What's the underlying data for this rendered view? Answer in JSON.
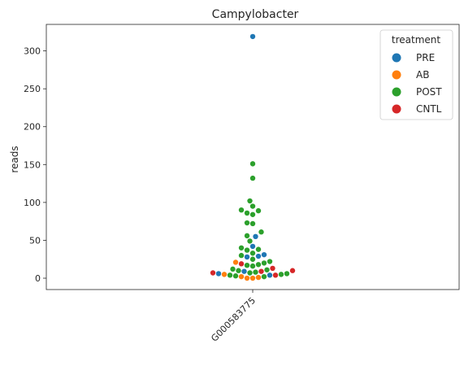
{
  "chart_data": {
    "type": "scatter",
    "subtype": "swarm",
    "title": "Campylobacter",
    "xlabel": "",
    "ylabel": "reads",
    "categories": [
      "G000583775"
    ],
    "ylim": [
      -15,
      335
    ],
    "yticks": [
      0,
      50,
      100,
      150,
      200,
      250,
      300
    ],
    "grid": false,
    "legend": {
      "title": "treatment",
      "placement": "top-right",
      "entries": [
        {
          "name": "PRE",
          "color": "#1f77b4"
        },
        {
          "name": "AB",
          "color": "#ff7f0e"
        },
        {
          "name": "POST",
          "color": "#2ca02c"
        },
        {
          "name": "CNTL",
          "color": "#d62728"
        }
      ]
    },
    "series": [
      {
        "name": "PRE",
        "color": "#1f77b4",
        "values": [
          319,
          55,
          42,
          31,
          28,
          29,
          9,
          6,
          4
        ]
      },
      {
        "name": "AB",
        "color": "#ff7f0e",
        "values": [
          21,
          5,
          2,
          1,
          0,
          0
        ]
      },
      {
        "name": "POST",
        "color": "#2ca02c",
        "values": [
          151,
          132,
          102,
          95,
          90,
          89,
          86,
          84,
          73,
          72,
          61,
          56,
          49,
          40,
          38,
          37,
          33,
          30,
          25,
          22,
          20,
          18,
          17,
          16,
          12,
          11,
          10,
          8,
          7,
          6,
          5,
          4,
          3,
          2
        ]
      },
      {
        "name": "CNTL",
        "color": "#d62728",
        "values": [
          19,
          13,
          10,
          9,
          7,
          4
        ]
      }
    ]
  }
}
